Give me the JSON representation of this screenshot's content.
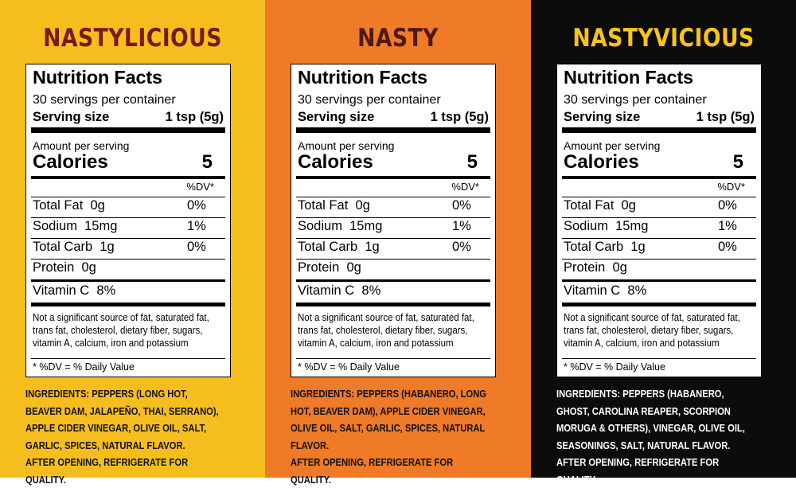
{
  "panels": [
    {
      "title": "NASTYLICIOUS",
      "ingredients": "INGREDIENTS: PEPPERS (LONG HOT, BEAVER DAM, JALAPEÑO, THAI, SERRANO), APPLE CIDER VINEGAR, OLIVE OIL, SALT, GARLIC, SPICES, NATURAL FLAVOR.",
      "storage": "AFTER OPENING, REFRIGERATE FOR QUALITY."
    },
    {
      "title": "NASTY",
      "ingredients": "INGREDIENTS: PEPPERS (HABANERO, LONG HOT, BEAVER DAM), APPLE CIDER VINEGAR, OLIVE OIL, SALT, GARLIC, SPICES, NATURAL FLAVOR.",
      "storage": "AFTER OPENING, REFRIGERATE FOR QUALITY."
    },
    {
      "title": "NASTYVICIOUS",
      "ingredients": "INGREDIENTS: PEPPERS (HABANERO, GHOST, CAROLINA REAPER, SCORPION MORUGA & OTHERS), VINEGAR, OLIVE OIL, SEASONINGS, SALT, NATURAL FLAVOR.",
      "storage": "AFTER OPENING, REFRIGERATE FOR QUALITY."
    }
  ],
  "label": {
    "heading": "Nutrition Facts",
    "servings": "30 servings per container",
    "serving_size_label": "Serving size",
    "serving_size_value": "1 tsp (5g)",
    "amount_per_serving": "Amount per serving",
    "calories_label": "Calories",
    "calories_value": "5",
    "dv_header": "%DV*",
    "nutrients": [
      {
        "name": "Total Fat",
        "amount": "0g",
        "dv": "0%"
      },
      {
        "name": "Sodium",
        "amount": "15mg",
        "dv": "1%"
      },
      {
        "name": "Total Carb",
        "amount": "1g",
        "dv": "0%"
      },
      {
        "name": "Protein",
        "amount": "0g",
        "dv": ""
      },
      {
        "name": "Vitamin C",
        "amount": "8%",
        "dv": ""
      }
    ],
    "notice": "Not a significant source of fat, saturated fat, trans fat, cholesterol, dietary fiber, sugars, vitamin A, calcium, iron and potassium",
    "dv_note": "* %DV = % Daily Value"
  },
  "colors": {
    "panel1_bg": "#F5BE1E",
    "panel2_bg": "#EF7A27",
    "panel3_bg": "#0C0C0C",
    "title1": "#7A1A16",
    "title2": "#4E1A10",
    "title3": "#F7C31C"
  }
}
